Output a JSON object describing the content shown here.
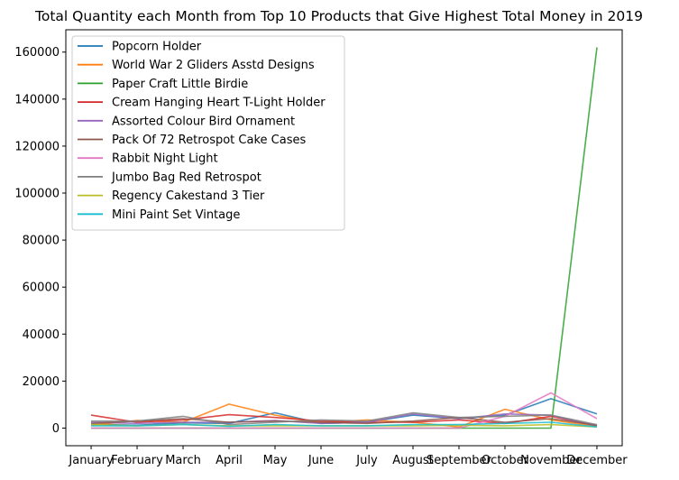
{
  "chart_data": {
    "type": "line",
    "title": "Total Quantity each Month from Top 10 Products that Give Highest Total Money in 2019",
    "xlabel": "",
    "ylabel": "",
    "categories": [
      "January",
      "February",
      "March",
      "April",
      "May",
      "June",
      "July",
      "August",
      "September",
      "October",
      "November",
      "December"
    ],
    "ylim": [
      -7500,
      169500
    ],
    "yticks": [
      0,
      20000,
      40000,
      60000,
      80000,
      100000,
      120000,
      140000,
      160000
    ],
    "grid": false,
    "legend_position": "top-left",
    "series": [
      {
        "name": "Popcorn Holder",
        "color": "#1f77b4",
        "values": [
          1600,
          1200,
          2200,
          2000,
          6500,
          2000,
          2500,
          5500,
          4000,
          5500,
          12500,
          6000
        ]
      },
      {
        "name": "World War 2 Gliders Asstd Designs",
        "color": "#ff7f0e",
        "values": [
          1200,
          3200,
          2500,
          10200,
          5500,
          2200,
          3500,
          2500,
          500,
          8000,
          3500,
          700
        ]
      },
      {
        "name": "Paper Craft Little Birdie",
        "color": "#2ca02c",
        "values": [
          0,
          0,
          0,
          0,
          0,
          0,
          0,
          0,
          0,
          0,
          0,
          162000
        ]
      },
      {
        "name": "Cream Hanging Heart T-Light Holder",
        "color": "#d62728",
        "values": [
          5500,
          2500,
          3500,
          5700,
          4500,
          3000,
          2500,
          2500,
          3500,
          2000,
          5000,
          1000
        ]
      },
      {
        "name": "Assorted Colour Bird Ornament",
        "color": "#9467bd",
        "values": [
          2500,
          2000,
          2500,
          2500,
          3200,
          2000,
          2500,
          6000,
          4000,
          6000,
          5500,
          800
        ]
      },
      {
        "name": "Pack Of 72 Retrospot Cake Cases",
        "color": "#8c564b",
        "values": [
          2000,
          3000,
          4000,
          2500,
          3000,
          2500,
          2000,
          3000,
          4500,
          2500,
          4000,
          1200
        ]
      },
      {
        "name": "Rabbit Night Light",
        "color": "#e377c2",
        "values": [
          0,
          0,
          0,
          0,
          0,
          0,
          0,
          0,
          0,
          5000,
          15000,
          4000
        ]
      },
      {
        "name": "Jumbo Bag Red Retrospot",
        "color": "#7f7f7f",
        "values": [
          3000,
          3000,
          5000,
          1500,
          2500,
          3500,
          3000,
          6500,
          4500,
          5000,
          5500,
          1500
        ]
      },
      {
        "name": "Regency Cakestand 3 Tier",
        "color": "#bcbd22",
        "values": [
          1500,
          1000,
          1500,
          1000,
          1000,
          1000,
          1000,
          1000,
          1200,
          1000,
          1500,
          500
        ]
      },
      {
        "name": "Mini Paint Set Vintage",
        "color": "#17becf",
        "values": [
          1000,
          1000,
          1500,
          800,
          1500,
          1000,
          1000,
          1500,
          1500,
          2000,
          2500,
          500
        ]
      }
    ]
  }
}
